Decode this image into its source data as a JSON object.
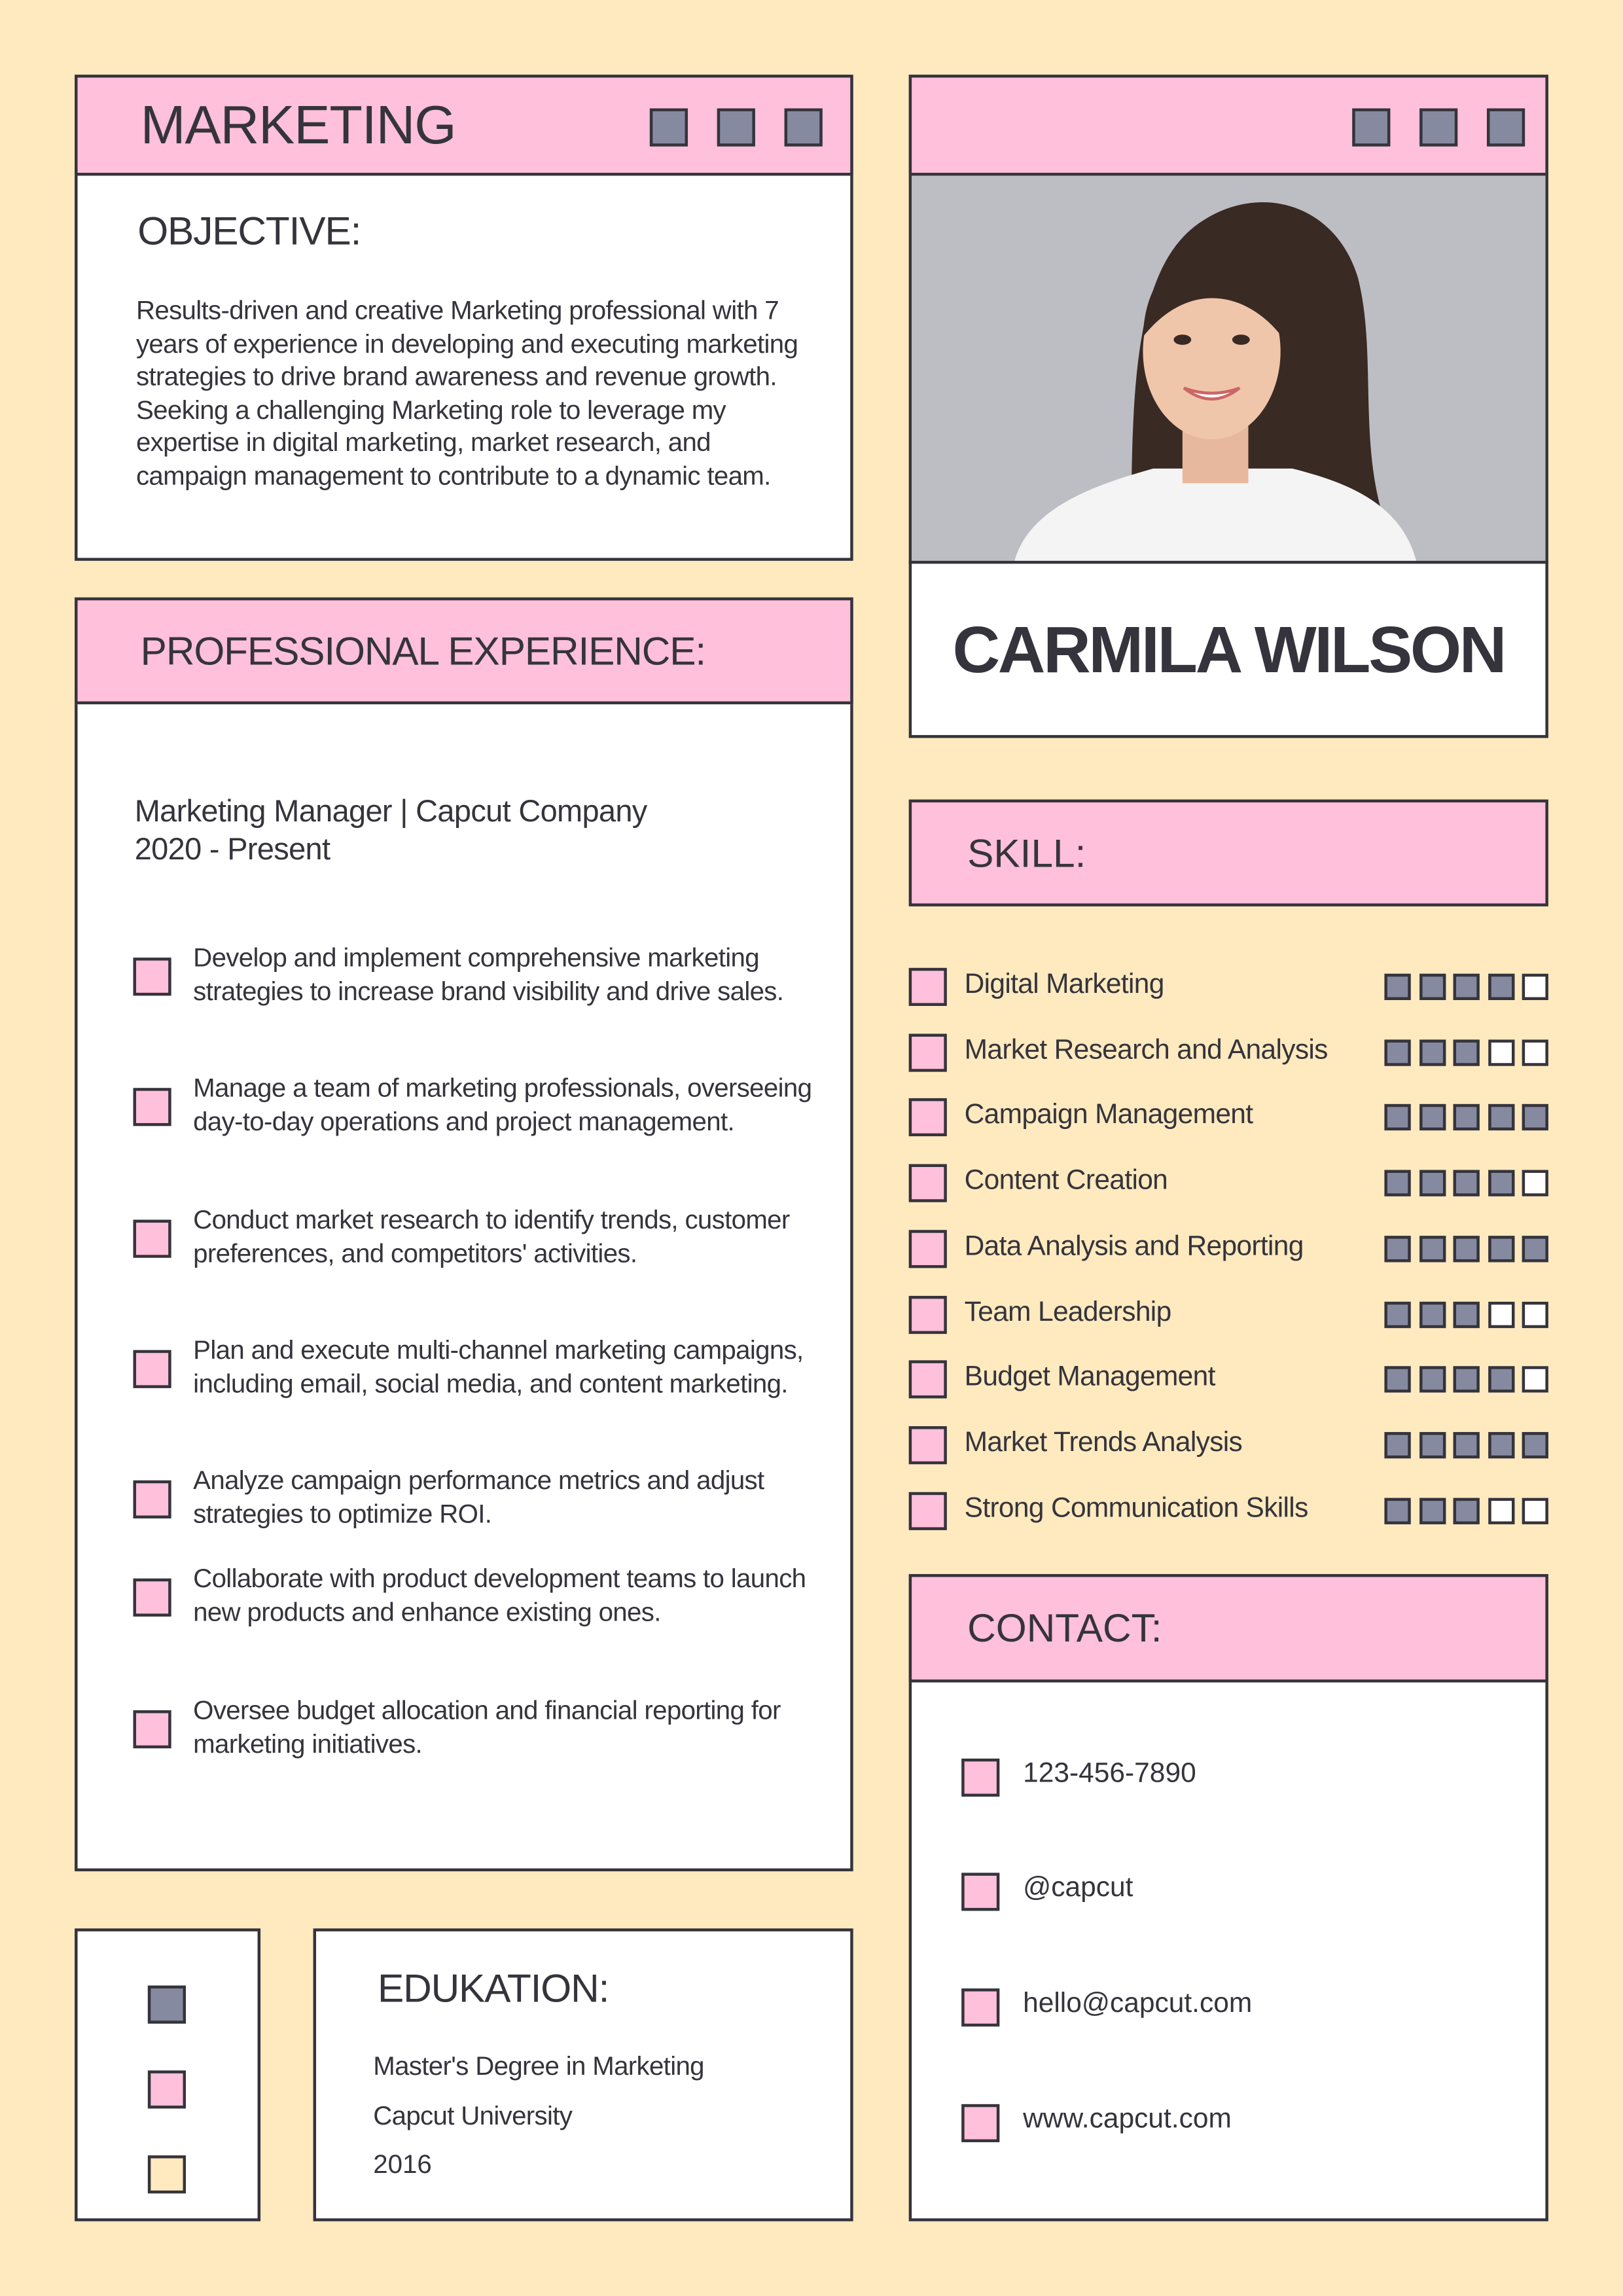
{
  "colors": {
    "background": "#ffeabf",
    "pink": "#ffc0db",
    "gray": "#868aa0",
    "border": "#35343c"
  },
  "header": {
    "title": "MARKETING"
  },
  "objective": {
    "heading": "OBJECTIVE:",
    "text": "Results-driven and creative Marketing professional with 7 years of experience in developing and executing marketing strategies to drive brand awareness and revenue growth. Seeking a challenging Marketing role to leverage my expertise in digital marketing, market research, and campaign management to contribute to a dynamic team."
  },
  "profile": {
    "name": "CARMILA WILSON",
    "photo_icon": "portrait-photo"
  },
  "experience": {
    "heading": "PROFESSIONAL EXPERIENCE:",
    "role": "Marketing Manager | Capcut Company",
    "period": "2020 - Present",
    "items": [
      "Develop and implement comprehensive marketing strategies to increase brand visibility and drive sales.",
      "Manage a team of marketing professionals, overseeing day-to-day operations and project management.",
      "Conduct market research to identify trends, customer preferences, and competitors' activities.",
      "Plan and execute multi-channel marketing campaigns, including email, social media, and content marketing.",
      "Analyze campaign performance metrics and adjust strategies to optimize ROI.",
      "Collaborate with product development teams to launch new products and enhance existing ones.",
      "Oversee budget allocation and financial reporting for marketing initiatives."
    ]
  },
  "skills": {
    "heading": "SKILL:",
    "max_rating": 5,
    "items": [
      {
        "label": "Digital Marketing",
        "rating": 4
      },
      {
        "label": "Market Research and Analysis",
        "rating": 3
      },
      {
        "label": "Campaign Management",
        "rating": 5
      },
      {
        "label": "Content Creation",
        "rating": 4
      },
      {
        "label": "Data Analysis and Reporting",
        "rating": 5
      },
      {
        "label": "Team Leadership",
        "rating": 3
      },
      {
        "label": "Budget Management",
        "rating": 4
      },
      {
        "label": "Market Trends Analysis",
        "rating": 5
      },
      {
        "label": "Strong Communication Skills",
        "rating": 3
      }
    ]
  },
  "contact": {
    "heading": "CONTACT:",
    "items": [
      "123-456-7890",
      "@capcut",
      "hello@capcut.com",
      "www.capcut.com"
    ]
  },
  "education": {
    "heading": "EDUKATION:",
    "degree": "Master's Degree in Marketing",
    "school": "Capcut University",
    "year": "2016"
  }
}
